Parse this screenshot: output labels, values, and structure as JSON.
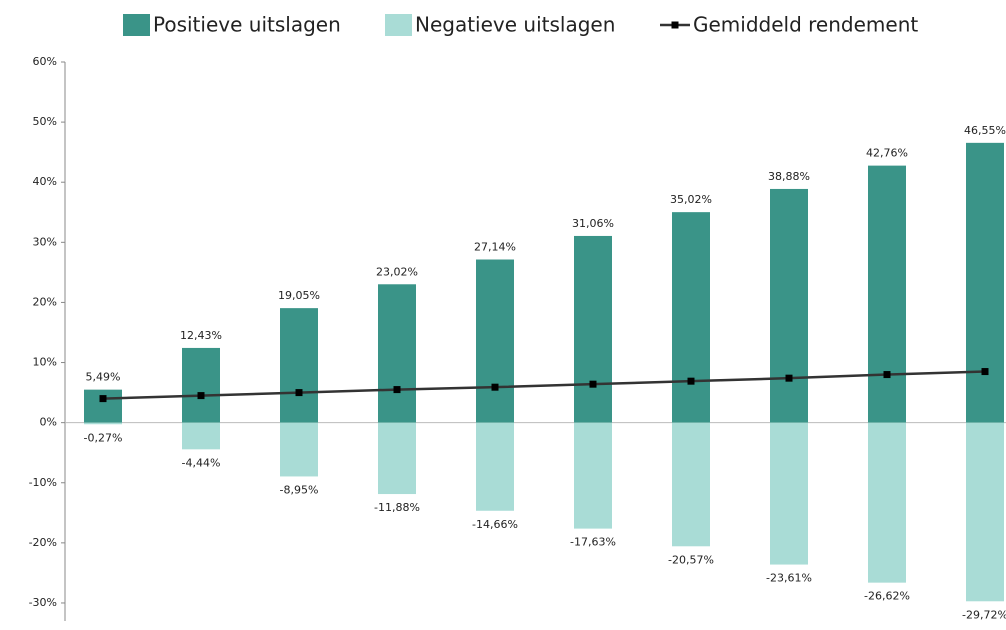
{
  "chart_data": {
    "type": "bar",
    "categories": [
      null,
      null,
      null,
      null,
      null,
      null,
      null,
      null,
      null,
      null
    ],
    "series": [
      {
        "name": "Positieve uitslagen",
        "type": "bar",
        "color": "#3a9488",
        "values": [
          5.49,
          12.43,
          19.05,
          23.02,
          27.14,
          31.06,
          35.02,
          38.88,
          42.76,
          46.55
        ],
        "value_labels": [
          "5,49%",
          "12,43%",
          "19,05%",
          "23,02%",
          "27,14%",
          "31,06%",
          "35,02%",
          "38,88%",
          "42,76%",
          "46,55%"
        ]
      },
      {
        "name": "Negatieve uitslagen",
        "type": "bar",
        "color": "#a9dcd6",
        "values": [
          -0.27,
          -4.44,
          -8.95,
          -11.88,
          -14.66,
          -17.63,
          -20.57,
          -23.61,
          -26.62,
          -29.72
        ],
        "value_labels": [
          "-0,27%",
          "-4,44%",
          "-8,95%",
          "-11,88%",
          "-14,66%",
          "-17,63%",
          "-20,57%",
          "-23,61%",
          "-26,62%",
          "-29,72%"
        ]
      },
      {
        "name": "Gemiddeld rendement",
        "type": "line",
        "color": "#333333",
        "values": [
          4.0,
          4.5,
          5.0,
          5.5,
          5.9,
          6.4,
          6.9,
          7.4,
          8.0,
          8.5
        ]
      }
    ],
    "ylim": [
      -33,
      60
    ],
    "yticks": [
      {
        "value": -30,
        "label": "-30%"
      },
      {
        "value": -20,
        "label": "-20%"
      },
      {
        "value": -10,
        "label": "-10%"
      },
      {
        "value": 0,
        "label": "0%"
      },
      {
        "value": 10,
        "label": "10%"
      },
      {
        "value": 20,
        "label": "20%"
      },
      {
        "value": 30,
        "label": "30%"
      },
      {
        "value": 40,
        "label": "40%"
      },
      {
        "value": 50,
        "label": "50%"
      },
      {
        "value": 60,
        "label": "60%"
      }
    ],
    "legend": "top"
  }
}
